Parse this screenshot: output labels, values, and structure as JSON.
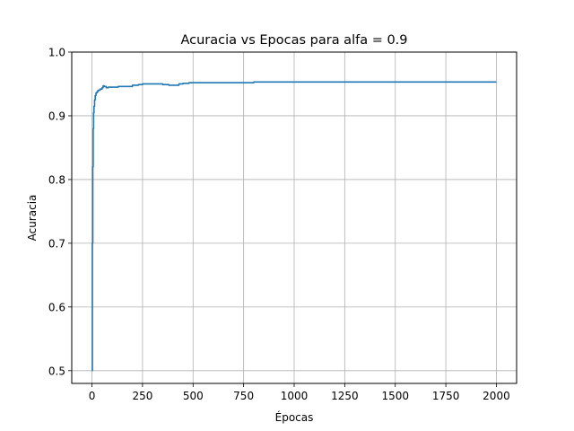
{
  "chart_data": {
    "type": "line",
    "title": "Acuracia vs Epocas para alfa = 0.9",
    "xlabel": "Épocas",
    "ylabel": "Acuracia",
    "xlim": [
      -100,
      2100
    ],
    "ylim": [
      0.48,
      1.0
    ],
    "grid": true,
    "xticks": [
      0,
      250,
      500,
      750,
      1000,
      1250,
      1500,
      1750,
      2000
    ],
    "xtick_labels": [
      "0",
      "250",
      "500",
      "750",
      "1000",
      "1250",
      "1500",
      "1750",
      "2000"
    ],
    "yticks": [
      0.5,
      0.6,
      0.7,
      0.8,
      0.9,
      1.0
    ],
    "ytick_labels": [
      "0.5",
      "0.6",
      "0.7",
      "0.8",
      "0.9",
      "1.0"
    ],
    "series": [
      {
        "color": "#1f77b4",
        "step": true,
        "x": [
          0,
          2,
          4,
          6,
          8,
          10,
          13,
          16,
          20,
          25,
          30,
          40,
          50,
          55,
          60,
          70,
          80,
          100,
          130,
          150,
          200,
          230,
          250,
          300,
          350,
          380,
          430,
          450,
          480,
          500,
          600,
          700,
          800,
          850,
          1000,
          1500,
          2000
        ],
        "y": [
          0.5,
          0.7,
          0.82,
          0.88,
          0.905,
          0.915,
          0.925,
          0.932,
          0.936,
          0.938,
          0.94,
          0.942,
          0.944,
          0.947,
          0.946,
          0.944,
          0.945,
          0.945,
          0.946,
          0.946,
          0.948,
          0.949,
          0.95,
          0.95,
          0.949,
          0.948,
          0.95,
          0.951,
          0.952,
          0.952,
          0.952,
          0.952,
          0.953,
          0.953,
          0.953,
          0.953,
          0.953
        ]
      }
    ]
  }
}
